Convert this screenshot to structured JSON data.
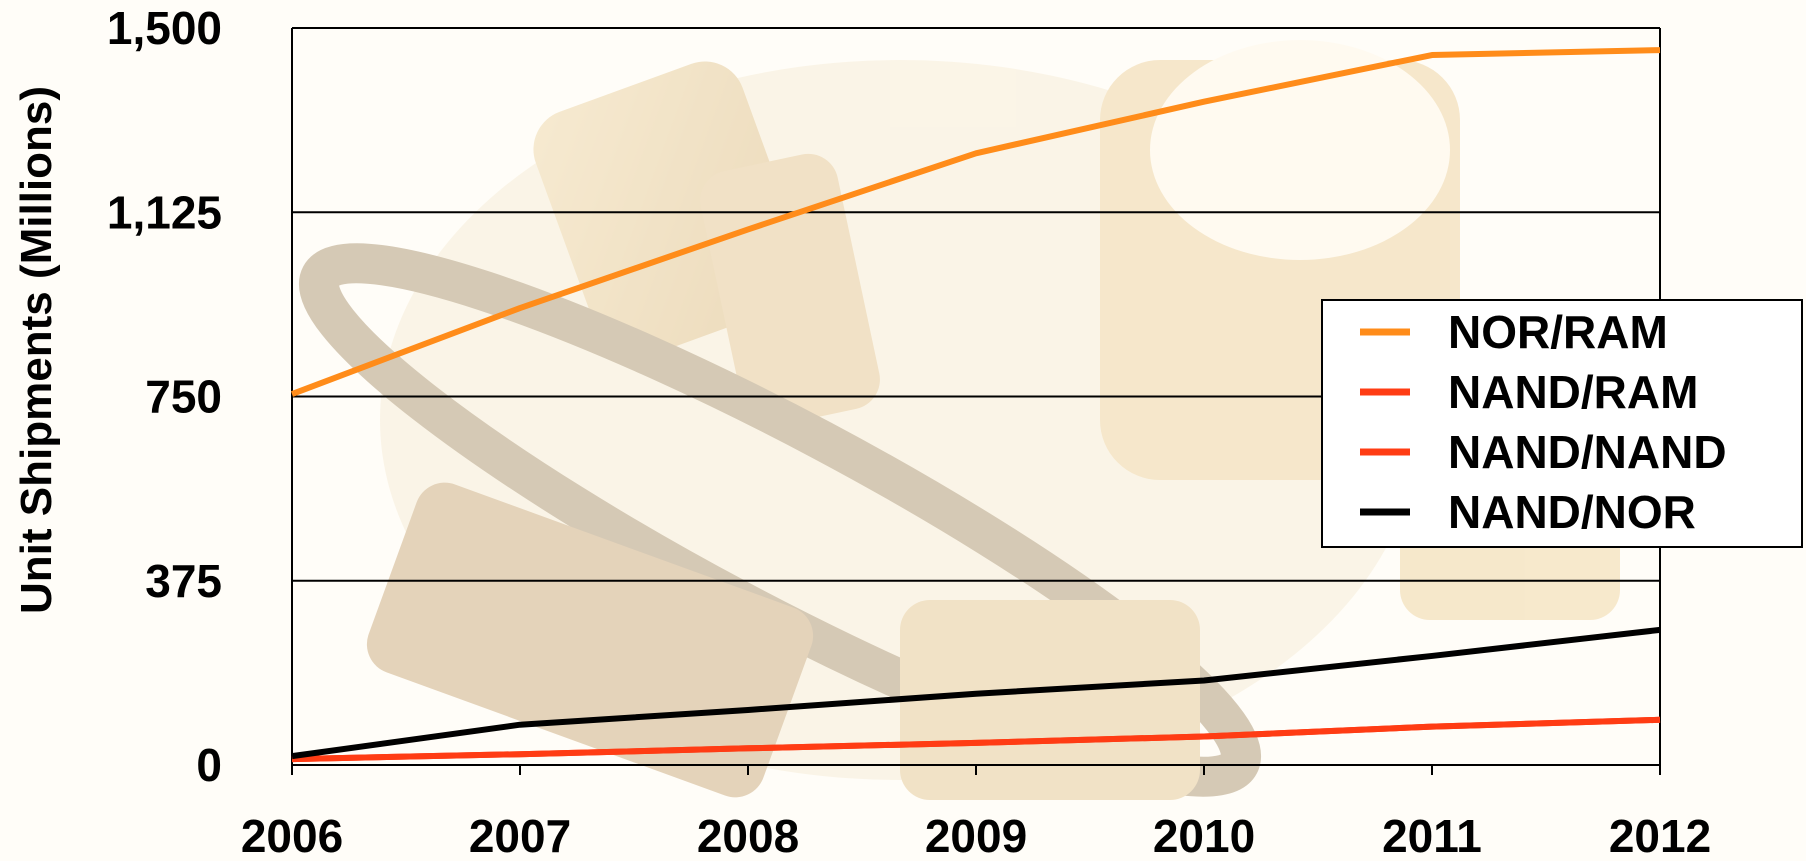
{
  "chart_data": {
    "type": "line",
    "title": "",
    "xlabel": "",
    "ylabel": "Unit Shipments (Millions)",
    "x": [
      "2006",
      "2007",
      "2008",
      "2009",
      "2010",
      "2011",
      "2012"
    ],
    "ylim": [
      0,
      1500
    ],
    "yticks": [
      "0",
      "375",
      "750",
      "1,125",
      "1,500"
    ],
    "ytick_values": [
      0,
      375,
      750,
      1125,
      1500
    ],
    "grid": true,
    "legend_position": "right",
    "series": [
      {
        "name": "NOR/RAM",
        "color": "#ff8c1a",
        "values": [
          755,
          930,
          1090,
          1245,
          1350,
          1445,
          1455
        ]
      },
      {
        "name": "NAND/RAM",
        "color": "#ff3c14",
        "values": [
          12,
          22,
          34,
          45,
          58,
          78,
          92
        ]
      },
      {
        "name": "NAND/NAND",
        "color": "#ff3c14",
        "values": [
          12,
          22,
          34,
          45,
          58,
          78,
          92
        ]
      },
      {
        "name": "NAND/NOR",
        "color": "#000000",
        "values": [
          18,
          82,
          112,
          145,
          172,
          222,
          275
        ]
      }
    ]
  }
}
